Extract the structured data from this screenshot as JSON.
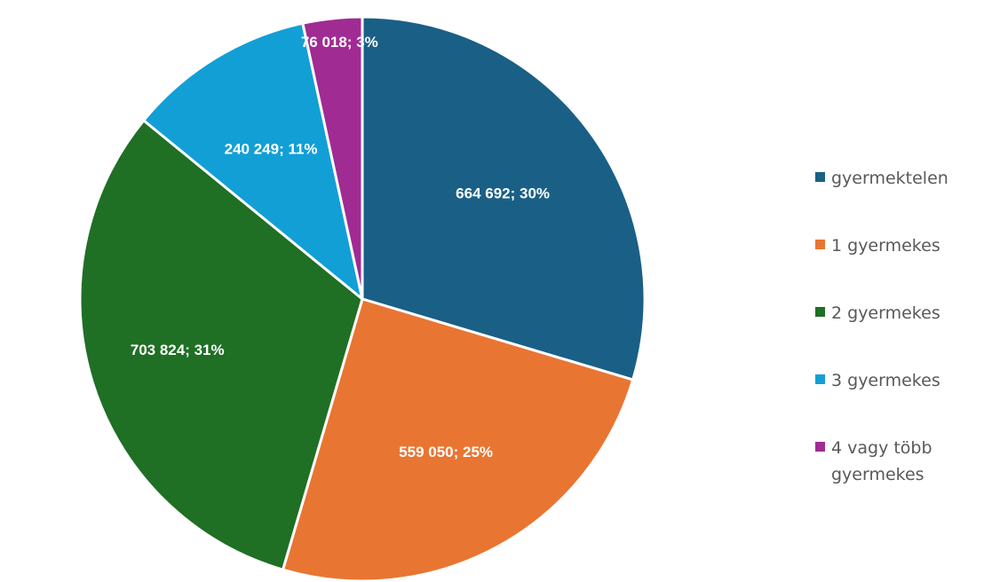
{
  "chart_data": {
    "type": "pie",
    "title": "",
    "start_angle_deg": 0,
    "direction": "clockwise",
    "legend_position": "right",
    "slices": [
      {
        "name": "gyermektelen",
        "value": 664692,
        "percent": 30,
        "label": "664 692; 30%",
        "color": "#1a5f86"
      },
      {
        "name": "1 gyermekes",
        "value": 559050,
        "percent": 25,
        "label": "559 050; 25%",
        "color": "#e97532"
      },
      {
        "name": "2 gyermekes",
        "value": 703824,
        "percent": 31,
        "label": "703 824; 31%",
        "color": "#1f6f25"
      },
      {
        "name": "3 gyermekes",
        "value": 240249,
        "percent": 11,
        "label": "240 249; 11%",
        "color": "#129fd6"
      },
      {
        "name": "4 vagy több gyermekes",
        "value": 76018,
        "percent": 3,
        "label": "76 018; 3%",
        "color": "#a02b93"
      }
    ]
  }
}
